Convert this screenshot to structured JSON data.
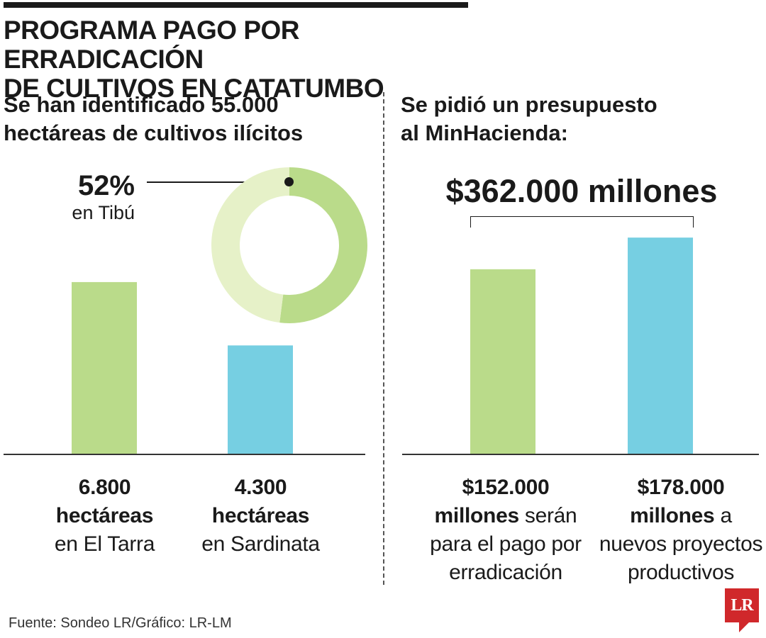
{
  "header": {
    "title_line1": "PROGRAMA PAGO POR ERRADICACIÓN",
    "title_line2": "DE CULTIVOS EN CATATUMBO"
  },
  "left_panel": {
    "subtitle_line1": "Se han identificado 55.000",
    "subtitle_line2": "hectáreas de cultivos ilícitos",
    "callout_value": "52%",
    "callout_place": "en Tibú"
  },
  "right_panel": {
    "subtitle_line1": "Se pidió un presupuesto",
    "subtitle_line2": "al MinHacienda:",
    "total": "$362.000 millones"
  },
  "labels": {
    "tarra_value": "6.800",
    "tarra_unit": "hectáreas",
    "tarra_place": "en El Tarra",
    "sardinata_value": "4.300",
    "sardinata_unit": "hectáreas",
    "sardinata_place": "en Sardinata",
    "pago_value": "$152.000",
    "pago_unit": "millones",
    "pago_rest1": " serán",
    "pago_rest2": "para el pago por",
    "pago_rest3": "erradicación",
    "proyectos_value": "$178.000",
    "proyectos_unit": "millones",
    "proyectos_rest1": " a",
    "proyectos_rest2": "nuevos proyectos",
    "proyectos_rest3": "productivos"
  },
  "footer": {
    "source": "Fuente: Sondeo LR/Gráfico: LR-LM",
    "logo": "LR"
  },
  "colors": {
    "green": "#badb8a",
    "light_green": "#e6f1c8",
    "blue": "#76cfe2",
    "axis": "#333333"
  },
  "chart_data": [
    {
      "type": "pie",
      "title": "Se han identificado 55.000 hectáreas de cultivos ilícitos",
      "slices": [
        {
          "label": "en Tibú",
          "value": 52,
          "color": "#badb8a"
        },
        {
          "label": "",
          "value": 48,
          "color": "#e6f1c8"
        }
      ]
    },
    {
      "type": "bar",
      "title": "Se han identificado 55.000 hectáreas de cultivos ilícitos",
      "categories": [
        "en El Tarra",
        "en Sardinata"
      ],
      "values": [
        6800,
        4300
      ],
      "colors": [
        "#badb8a",
        "#76cfe2"
      ],
      "ylim": [
        0,
        8700
      ]
    },
    {
      "type": "bar",
      "title": "Se pidió un presupuesto al MinHacienda:",
      "categories": [
        "para el pago por erradicación",
        "nuevos proyectos productivos"
      ],
      "values": [
        152000,
        178000
      ],
      "colors": [
        "#badb8a",
        "#76cfe2"
      ],
      "ylim": [
        0,
        181000
      ]
    }
  ]
}
